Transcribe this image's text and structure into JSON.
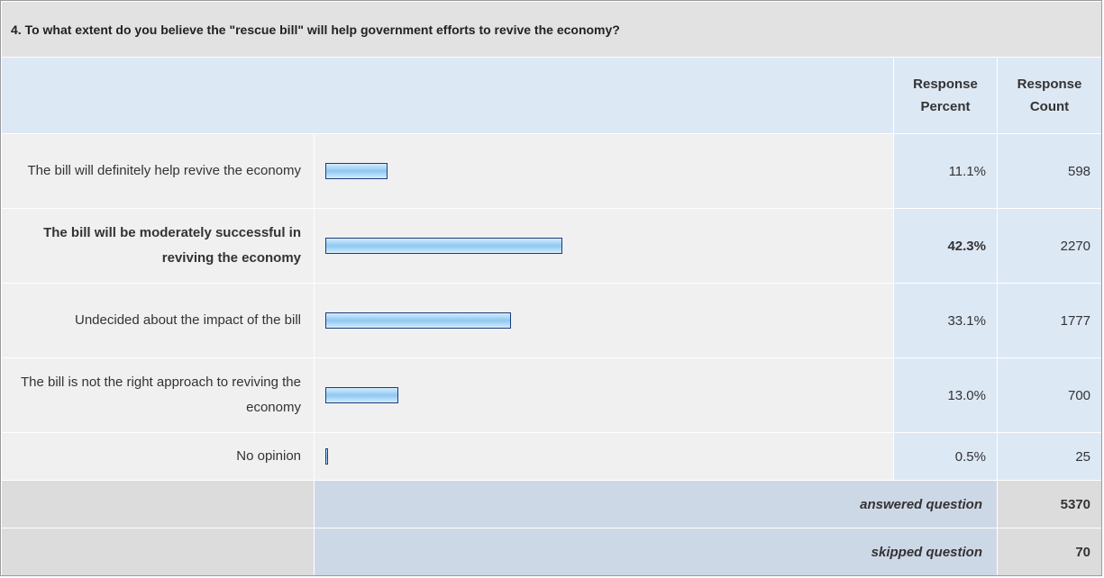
{
  "chart_data": {
    "type": "bar",
    "title": "4. To what extent do you believe the \"rescue bill\" will help government efforts to revive the economy?",
    "percent_header": "Response Percent",
    "count_header": "Response Count",
    "categories": [
      "The bill will definitely help revive the economy",
      "The bill will be moderately successful in reviving the economy",
      "Undecided about the impact of the bill",
      "The bill is not the right approach to reviving the economy",
      "No opinion"
    ],
    "values": [
      11.1,
      42.3,
      33.1,
      13.0,
      0.5
    ],
    "value_labels": [
      "11.1%",
      "42.3%",
      "33.1%",
      "13.0%",
      "0.5%"
    ],
    "counts": [
      598,
      2270,
      1777,
      700,
      25
    ],
    "highlight_index": 1,
    "color": "#8ec8f2",
    "answered_label": "answered question",
    "answered": 5370,
    "skipped_label": "skipped question",
    "skipped": 70
  }
}
